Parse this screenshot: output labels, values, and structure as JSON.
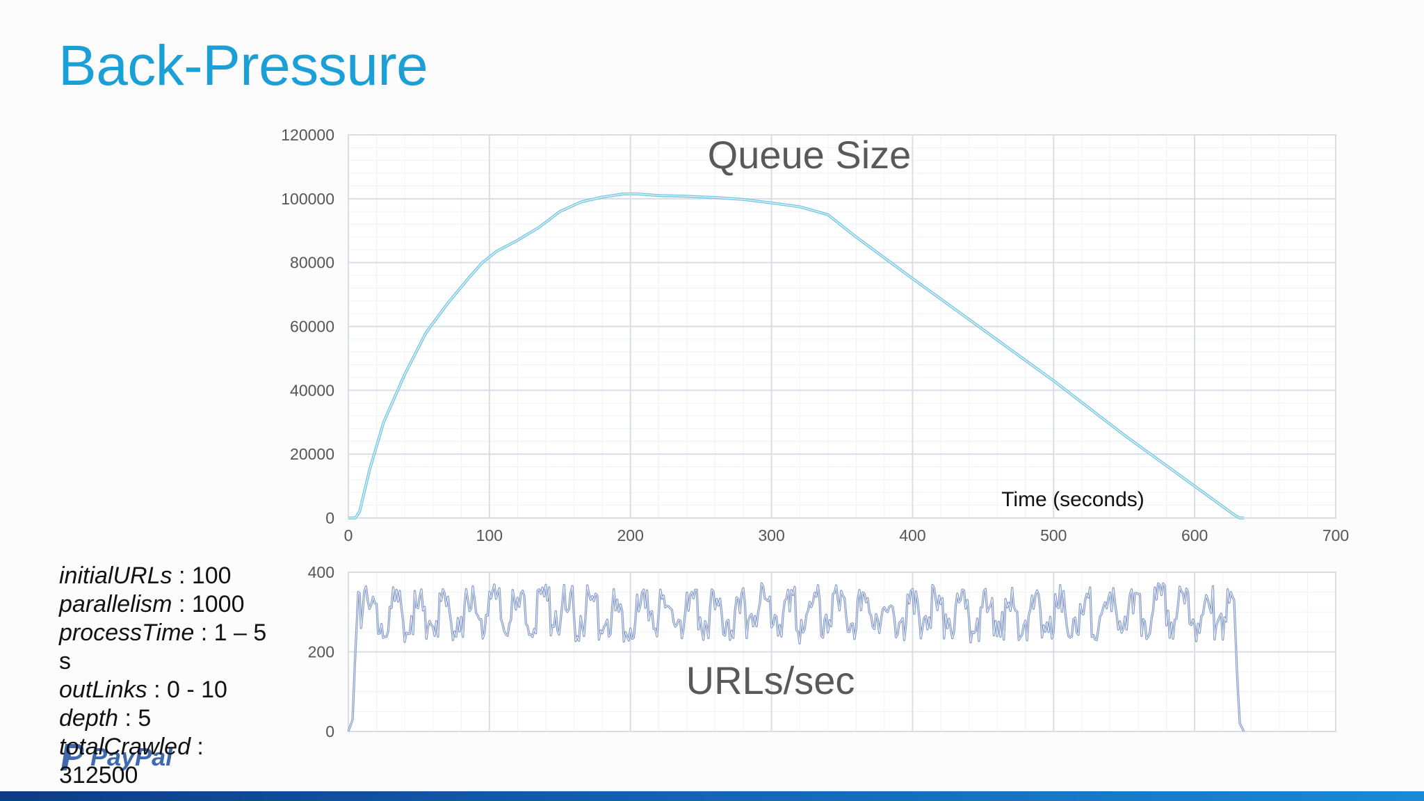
{
  "slide": {
    "title": "Back-Pressure"
  },
  "params": {
    "lines": [
      {
        "key": "initialURLs",
        "value": " : 100"
      },
      {
        "key": "parallelism",
        "value": " : 1000"
      },
      {
        "key": "processTime",
        "value": " : 1 – 5 s"
      },
      {
        "key": "outLinks",
        "value": " : 0 - 10"
      },
      {
        "key": "depth",
        "value": " : 5"
      },
      {
        "key": "totalCrawled",
        "value": " : 312500"
      }
    ]
  },
  "logo": {
    "text": "PayPal"
  },
  "colors": {
    "title": "#1a9fd6",
    "queue_line": "#6ec3e2",
    "rate_line": "#7b93c4",
    "grid_major": "#d9dee6",
    "grid_minor": "#eef1f5",
    "footer": "#1560b0"
  },
  "chart_data": [
    {
      "type": "line",
      "title": "Queue Size",
      "xlabel": "Time (seconds)",
      "ylabel": "",
      "xlim": [
        0,
        700
      ],
      "ylim": [
        0,
        120000
      ],
      "x_ticks": [
        "0",
        "100",
        "200",
        "300",
        "400",
        "500",
        "600",
        "700"
      ],
      "y_ticks": [
        "0",
        "20000",
        "40000",
        "60000",
        "80000",
        "100000",
        "120000"
      ],
      "grid": true,
      "series": [
        {
          "x": [
            0,
            5,
            8,
            15,
            25,
            40,
            55,
            70,
            85,
            95,
            105,
            120,
            135,
            150,
            165,
            180,
            195,
            205,
            220,
            240,
            260,
            280,
            300,
            320,
            340,
            360,
            400,
            450,
            500,
            550,
            600,
            628,
            632,
            635
          ],
          "values": [
            0,
            0,
            2000,
            15000,
            30000,
            45000,
            58000,
            67000,
            75000,
            80000,
            83500,
            87000,
            91000,
            96000,
            99000,
            100500,
            101500,
            101500,
            101000,
            100800,
            100400,
            99800,
            98700,
            97500,
            95000,
            88000,
            75000,
            59000,
            43000,
            26000,
            10000,
            1000,
            0,
            0
          ]
        }
      ]
    },
    {
      "type": "line",
      "title": "URLs/sec",
      "xlabel": "",
      "ylabel": "",
      "xlim": [
        0,
        700
      ],
      "ylim": [
        0,
        400
      ],
      "y_ticks": [
        "0",
        "200",
        "400"
      ],
      "grid": true,
      "series": [
        {
          "x": [
            0,
            3,
            5,
            7,
            10,
            20,
            40,
            60,
            80,
            100,
            120,
            140,
            160,
            180,
            200,
            220,
            240,
            260,
            280,
            300,
            320,
            340,
            360,
            380,
            400,
            420,
            440,
            460,
            480,
            500,
            520,
            540,
            560,
            580,
            600,
            620,
            628,
            630,
            632,
            635
          ],
          "values": [
            0,
            30,
            200,
            350,
            340,
            335,
            330,
            338,
            325,
            340,
            320,
            345,
            330,
            335,
            328,
            340,
            322,
            336,
            330,
            342,
            325,
            338,
            330,
            334,
            328,
            340,
            325,
            337,
            332,
            339,
            326,
            335,
            330,
            341,
            324,
            333,
            330,
            150,
            20,
            0
          ]
        }
      ]
    }
  ]
}
